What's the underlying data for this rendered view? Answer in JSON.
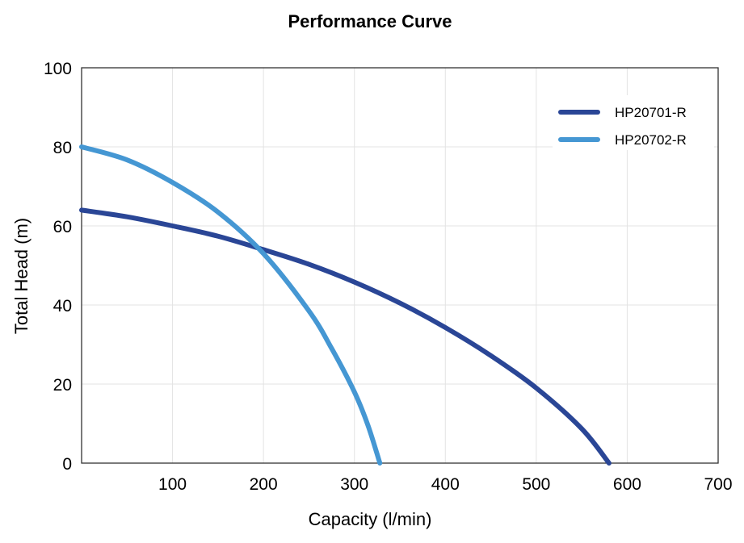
{
  "chart_data": {
    "type": "line",
    "title": "Performance Curve",
    "xlabel": "Capacity (l/min)",
    "ylabel": "Total Head (m)",
    "xlim": [
      0,
      700
    ],
    "ylim": [
      0,
      100
    ],
    "x_ticks": [
      100,
      200,
      300,
      400,
      500,
      600,
      700
    ],
    "y_ticks": [
      0,
      20,
      40,
      60,
      80,
      100
    ],
    "grid": true,
    "legend_position": "top-right",
    "series": [
      {
        "name": "HP20701-R",
        "color": "#2a4696",
        "x": [
          0,
          50,
          100,
          150,
          200,
          250,
          300,
          350,
          400,
          450,
          500,
          550,
          580
        ],
        "y": [
          64,
          62.3,
          60,
          57.4,
          54,
          50.3,
          45.8,
          40.5,
          34.3,
          27.2,
          19,
          8.7,
          0
        ]
      },
      {
        "name": "HP20702-R",
        "color": "#4597d3",
        "x": [
          0,
          50,
          100,
          150,
          200,
          250,
          275,
          300,
          315,
          328
        ],
        "y": [
          80,
          76.7,
          71,
          63.5,
          53,
          38.5,
          29,
          18,
          9.5,
          0
        ]
      }
    ]
  }
}
